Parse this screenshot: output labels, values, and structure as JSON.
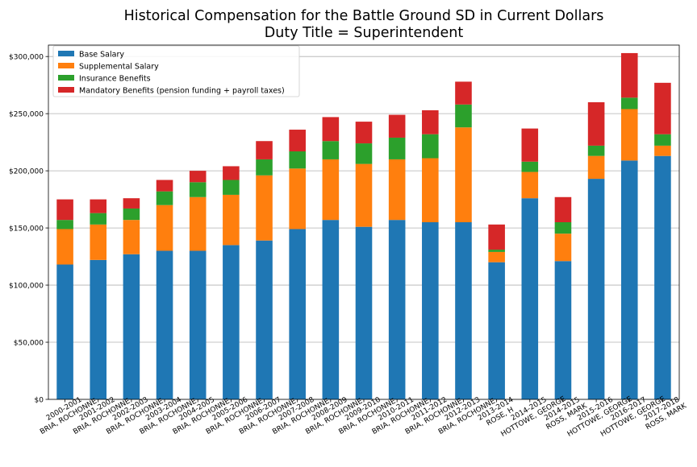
{
  "chart_data": {
    "type": "bar",
    "stacked": true,
    "title": "Historical Compensation for the Battle Ground SD in Current Dollars",
    "subtitle": "Duty Title = Superintendent",
    "xlabel": "",
    "ylabel": "",
    "ylim": [
      0,
      310000
    ],
    "yticks": [
      0,
      50000,
      100000,
      150000,
      200000,
      250000,
      300000
    ],
    "ytick_labels": [
      "$0",
      "$50,000",
      "$100,000",
      "$150,000",
      "$200,000",
      "$250,000",
      "$300,000"
    ],
    "grid": "horizontal",
    "legend_position": "top-left",
    "categories": [
      [
        "2000-2001",
        "BRIA, ROCHONNE"
      ],
      [
        "2001-2002",
        "BRIA, ROCHONNE"
      ],
      [
        "2002-2003",
        "BRIA, ROCHONNE"
      ],
      [
        "2003-2004",
        "BRIA, ROCHONNE"
      ],
      [
        "2004-2005",
        "BRIA, ROCHONNE"
      ],
      [
        "2005-2006",
        "BRIA, ROCHONNE"
      ],
      [
        "2006-2007",
        "BRIA, ROCHONNE"
      ],
      [
        "2007-2008",
        "BRIA, ROCHONNE"
      ],
      [
        "2008-2009",
        "BRIA, ROCHONNE"
      ],
      [
        "2009-2010",
        "BRIA, ROCHONNE"
      ],
      [
        "2010-2011",
        "BRIA, ROCHONNE"
      ],
      [
        "2011-2012",
        "BRIA, ROCHONNE"
      ],
      [
        "2012-2013",
        "BRIA, ROCHONNE"
      ],
      [
        "2013-2014",
        "ROSE, H"
      ],
      [
        "2014-2015",
        "HOTTOWE, GEORGE"
      ],
      [
        "2014-2015",
        "ROSS, MARK"
      ],
      [
        "2015-2016",
        "HOTTOWE, GEORGE"
      ],
      [
        "2016-2017",
        "HOTTOWE, GEORGE"
      ],
      [
        "2017-2018",
        "ROSS, MARK"
      ]
    ],
    "series": [
      {
        "name": "Base Salary",
        "color": "#1f77b4",
        "values": [
          118000,
          122000,
          127000,
          130000,
          130000,
          135000,
          139000,
          149000,
          157000,
          151000,
          157000,
          155000,
          155000,
          120000,
          176000,
          121000,
          193000,
          209000,
          213000
        ]
      },
      {
        "name": "Supplemental Salary",
        "color": "#ff7f0e",
        "values": [
          31000,
          31000,
          30000,
          40000,
          47000,
          44000,
          57000,
          53000,
          53000,
          55000,
          53000,
          56000,
          83000,
          9000,
          23000,
          24000,
          20000,
          45000,
          9000
        ]
      },
      {
        "name": "Insurance Benefits",
        "color": "#2ca02c",
        "values": [
          8000,
          10000,
          10000,
          12000,
          13000,
          13000,
          14000,
          15000,
          16000,
          18000,
          19000,
          21000,
          20000,
          2000,
          9000,
          10000,
          9000,
          10000,
          10000
        ]
      },
      {
        "name": "Mandatory Benefits (pension funding + payroll taxes)",
        "color": "#d62728",
        "values": [
          18000,
          12000,
          9000,
          10000,
          10000,
          12000,
          16000,
          19000,
          21000,
          19000,
          20000,
          21000,
          20000,
          22000,
          29000,
          22000,
          38000,
          39000,
          45000
        ]
      }
    ]
  }
}
